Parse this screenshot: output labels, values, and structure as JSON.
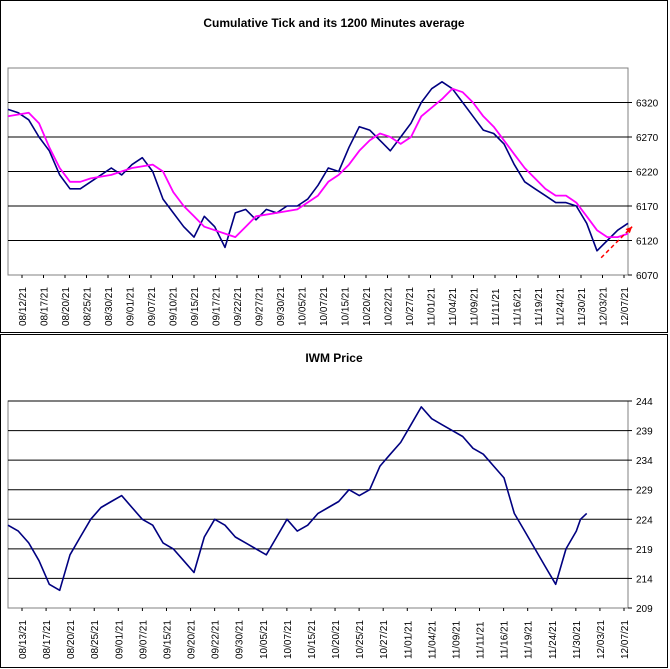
{
  "chart_data": [
    {
      "type": "line",
      "title": "Cumulative Tick and its 1200 Minutes average",
      "ylim": [
        6070,
        6370
      ],
      "yticks": [
        6070,
        6120,
        6170,
        6220,
        6270,
        6320
      ],
      "grid": "horizontal",
      "x_tick_labels": [
        "08/12/21",
        "08/17/21",
        "08/20/21",
        "08/25/21",
        "08/30/21",
        "09/01/21",
        "09/07/21",
        "09/10/21",
        "09/15/21",
        "09/17/21",
        "09/22/21",
        "09/27/21",
        "09/30/21",
        "10/05/21",
        "10/07/21",
        "10/15/21",
        "10/20/21",
        "10/22/21",
        "10/27/21",
        "11/01/21",
        "11/04/21",
        "11/09/21",
        "11/11/21",
        "11/16/21",
        "11/19/21",
        "11/24/21",
        "11/30/21",
        "12/03/21",
        "12/07/21"
      ],
      "series": [
        {
          "color": "#000080",
          "values": [
            [
              0,
              6310
            ],
            [
              0.5,
              6305
            ],
            [
              1,
              6295
            ],
            [
              1.5,
              6270
            ],
            [
              2,
              6250
            ],
            [
              2.5,
              6215
            ],
            [
              3,
              6195
            ],
            [
              3.5,
              6195
            ],
            [
              4,
              6205
            ],
            [
              4.5,
              6215
            ],
            [
              5,
              6225
            ],
            [
              5.5,
              6215
            ],
            [
              6,
              6230
            ],
            [
              6.5,
              6240
            ],
            [
              7,
              6220
            ],
            [
              7.5,
              6180
            ],
            [
              8,
              6160
            ],
            [
              8.5,
              6140
            ],
            [
              9,
              6125
            ],
            [
              9.5,
              6155
            ],
            [
              10,
              6140
            ],
            [
              10.5,
              6110
            ],
            [
              11,
              6160
            ],
            [
              11.5,
              6165
            ],
            [
              12,
              6150
            ],
            [
              12.5,
              6165
            ],
            [
              13,
              6160
            ],
            [
              13.5,
              6170
            ],
            [
              14,
              6170
            ],
            [
              14.5,
              6180
            ],
            [
              15,
              6200
            ],
            [
              15.5,
              6225
            ],
            [
              16,
              6220
            ],
            [
              16.5,
              6255
            ],
            [
              17,
              6285
            ],
            [
              17.5,
              6280
            ],
            [
              18,
              6265
            ],
            [
              18.5,
              6250
            ],
            [
              19,
              6270
            ],
            [
              19.5,
              6290
            ],
            [
              20,
              6320
            ],
            [
              20.5,
              6340
            ],
            [
              21,
              6350
            ],
            [
              21.5,
              6340
            ],
            [
              22,
              6320
            ],
            [
              22.5,
              6300
            ],
            [
              23,
              6280
            ],
            [
              23.5,
              6275
            ],
            [
              24,
              6260
            ],
            [
              24.5,
              6230
            ],
            [
              25,
              6205
            ],
            [
              25.5,
              6195
            ],
            [
              26,
              6185
            ],
            [
              26.5,
              6175
            ],
            [
              27,
              6175
            ],
            [
              27.5,
              6170
            ],
            [
              28,
              6145
            ],
            [
              28.5,
              6105
            ],
            [
              29,
              6120
            ],
            [
              29.5,
              6135
            ],
            [
              30,
              6145
            ]
          ]
        },
        {
          "color": "#ff00ff",
          "values": [
            [
              0,
              6300
            ],
            [
              1,
              6305
            ],
            [
              1.5,
              6290
            ],
            [
              2,
              6255
            ],
            [
              2.5,
              6225
            ],
            [
              3,
              6205
            ],
            [
              3.5,
              6205
            ],
            [
              4,
              6210
            ],
            [
              5,
              6215
            ],
            [
              6,
              6225
            ],
            [
              7,
              6230
            ],
            [
              7.5,
              6220
            ],
            [
              8,
              6190
            ],
            [
              8.5,
              6170
            ],
            [
              9,
              6155
            ],
            [
              9.5,
              6140
            ],
            [
              10,
              6135
            ],
            [
              10.5,
              6130
            ],
            [
              11,
              6125
            ],
            [
              11.5,
              6140
            ],
            [
              12,
              6155
            ],
            [
              13,
              6160
            ],
            [
              14,
              6165
            ],
            [
              15,
              6185
            ],
            [
              15.5,
              6205
            ],
            [
              16,
              6215
            ],
            [
              16.5,
              6230
            ],
            [
              17,
              6250
            ],
            [
              17.5,
              6265
            ],
            [
              18,
              6275
            ],
            [
              18.5,
              6270
            ],
            [
              19,
              6260
            ],
            [
              19.5,
              6270
            ],
            [
              20,
              6300
            ],
            [
              21,
              6325
            ],
            [
              21.5,
              6340
            ],
            [
              22,
              6335
            ],
            [
              22.5,
              6320
            ],
            [
              23,
              6300
            ],
            [
              23.5,
              6285
            ],
            [
              24,
              6265
            ],
            [
              24.5,
              6245
            ],
            [
              25,
              6225
            ],
            [
              25.5,
              6210
            ],
            [
              26,
              6195
            ],
            [
              26.5,
              6185
            ],
            [
              27,
              6185
            ],
            [
              27.5,
              6175
            ],
            [
              28,
              6155
            ],
            [
              28.5,
              6135
            ],
            [
              29,
              6125
            ],
            [
              29.5,
              6125
            ],
            [
              30,
              6130
            ]
          ]
        }
      ],
      "annotation": {
        "type": "dashed-arrow",
        "color": "#ff0000",
        "from": [
          28.7,
          6095
        ],
        "to": [
          30.2,
          6140
        ]
      }
    },
    {
      "type": "line",
      "title": "IWM Price",
      "ylim": [
        209,
        244
      ],
      "yticks": [
        209,
        214,
        219,
        224,
        229,
        234,
        239,
        244
      ],
      "grid": "horizontal",
      "x_tick_labels": [
        "08/13/21",
        "08/17/21",
        "08/20/21",
        "08/25/21",
        "09/01/21",
        "09/07/21",
        "09/15/21",
        "09/20/21",
        "09/22/21",
        "09/30/21",
        "10/05/21",
        "10/07/21",
        "10/15/21",
        "10/20/21",
        "10/25/21",
        "10/27/21",
        "11/01/21",
        "11/04/21",
        "11/09/21",
        "11/11/21",
        "11/16/21",
        "11/19/21",
        "11/24/21",
        "11/30/21",
        "12/03/21",
        "12/07/21"
      ],
      "series": [
        {
          "color": "#000080",
          "values": [
            [
              0,
              223
            ],
            [
              0.5,
              222
            ],
            [
              1,
              220
            ],
            [
              1.5,
              217
            ],
            [
              2,
              213
            ],
            [
              2.5,
              212
            ],
            [
              3,
              218
            ],
            [
              3.5,
              221
            ],
            [
              4,
              224
            ],
            [
              4.5,
              226
            ],
            [
              5,
              227
            ],
            [
              5.5,
              228
            ],
            [
              6,
              226
            ],
            [
              6.5,
              224
            ],
            [
              7,
              223
            ],
            [
              7.5,
              220
            ],
            [
              8,
              219
            ],
            [
              8.5,
              217
            ],
            [
              9,
              215
            ],
            [
              9.5,
              221
            ],
            [
              10,
              224
            ],
            [
              10.5,
              223
            ],
            [
              11,
              221
            ],
            [
              11.5,
              220
            ],
            [
              12,
              219
            ],
            [
              12.5,
              218
            ],
            [
              13,
              221
            ],
            [
              13.5,
              224
            ],
            [
              14,
              222
            ],
            [
              14.5,
              223
            ],
            [
              15,
              225
            ],
            [
              15.5,
              226
            ],
            [
              16,
              227
            ],
            [
              16.5,
              229
            ],
            [
              17,
              228
            ],
            [
              17.5,
              229
            ],
            [
              18,
              233
            ],
            [
              18.5,
              235
            ],
            [
              19,
              237
            ],
            [
              19.5,
              240
            ],
            [
              20,
              243
            ],
            [
              20.5,
              241
            ],
            [
              21,
              240
            ],
            [
              21.5,
              239
            ],
            [
              22,
              238
            ],
            [
              22.5,
              236
            ],
            [
              23,
              235
            ],
            [
              23.5,
              233
            ],
            [
              24,
              231
            ],
            [
              24.5,
              225
            ],
            [
              25,
              222
            ],
            [
              25.5,
              219
            ],
            [
              26,
              216
            ],
            [
              26.5,
              213
            ],
            [
              27,
              219
            ],
            [
              27.5,
              222
            ],
            [
              27.7,
              224
            ],
            [
              28,
              225
            ]
          ]
        }
      ]
    }
  ]
}
